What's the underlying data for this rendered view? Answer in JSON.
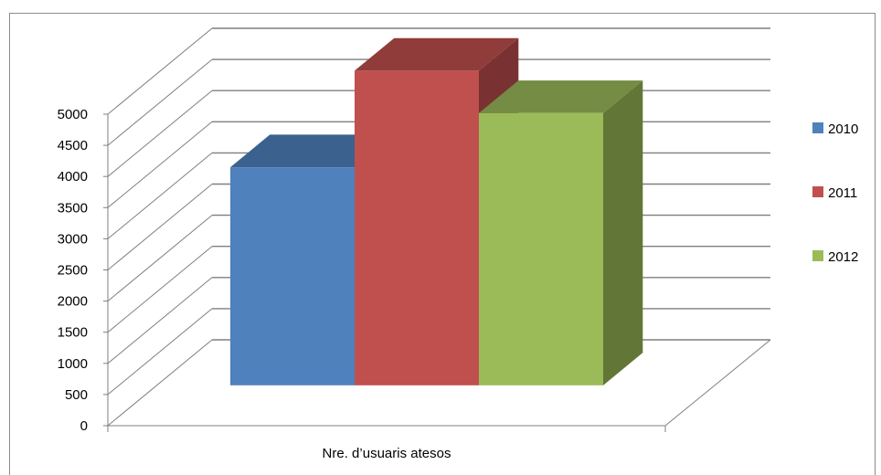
{
  "chart_data": {
    "type": "bar",
    "categories": [
      "Nre. d’usuaris atesos"
    ],
    "series": [
      {
        "name": "2010",
        "values": [
          3500
        ],
        "color": "#4f81bd"
      },
      {
        "name": "2011",
        "values": [
          5050
        ],
        "color": "#c0504d"
      },
      {
        "name": "2012",
        "values": [
          4370
        ],
        "color": "#9bbb59"
      }
    ],
    "ylim": [
      0,
      5000
    ],
    "yticks": [
      "0",
      "500",
      "1000",
      "1500",
      "2000",
      "2500",
      "3000",
      "3500",
      "4000",
      "4500",
      "5000"
    ],
    "grid": true,
    "legend_position": "right",
    "three_d": true
  }
}
